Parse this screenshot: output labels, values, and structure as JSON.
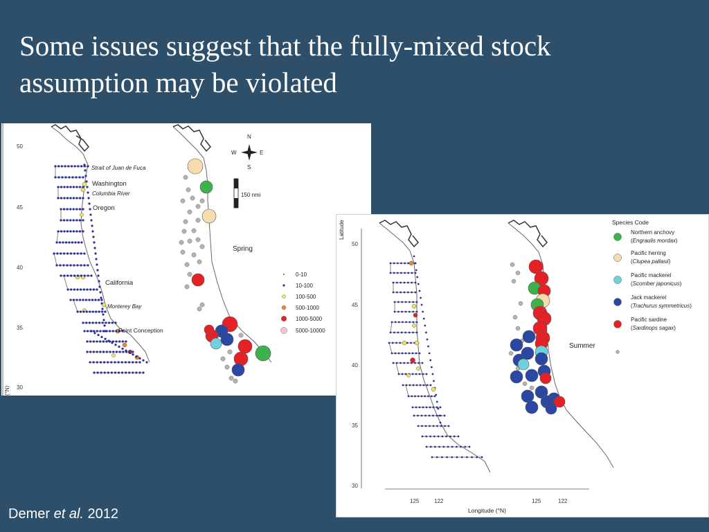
{
  "slide": {
    "title_line1": "Some issues suggest that the fully-mixed stock",
    "title_line2": "assumption may be violated",
    "citation_author": "Demer ",
    "citation_etal": "et al.",
    "citation_year": " 2012"
  },
  "map1": {
    "lat_ticks": [
      "50",
      "45",
      "40",
      "35",
      "30"
    ],
    "axis_label_fragment": "(°N)",
    "places": {
      "strait": "Strait of Juan de Fuca",
      "washington": "Washington",
      "columbia": "Columbia River",
      "oregon": "Oregon",
      "california": "California",
      "monterey": "Monterey Bay",
      "point_conception": "Point Conception"
    },
    "compass": {
      "n": "N",
      "s": "S",
      "e": "E",
      "w": "W"
    },
    "scale_label": "150 nmi",
    "season": "Spring",
    "legend": [
      {
        "label": "0-10",
        "color": "#1b1f6e"
      },
      {
        "label": "10-100",
        "color": "#2a2f9a"
      },
      {
        "label": "100-500",
        "color": "#f2e35c"
      },
      {
        "label": "500-1000",
        "color": "#e98a2c"
      },
      {
        "label": "1000-5000",
        "color": "#e02228"
      },
      {
        "label": "5000-10000",
        "color": "#f6c5cf"
      }
    ]
  },
  "map2": {
    "lat_ticks": [
      "50",
      "45",
      "40",
      "35",
      "30"
    ],
    "lon_ticks": [
      "125",
      "122",
      "125",
      "122"
    ],
    "y_axis_label": "Latitude",
    "x_axis_label": "Longitude (°N)",
    "season": "Summer",
    "species_title": "Species Code",
    "species": [
      {
        "common": "Northern anchovy",
        "sci_prefix": "(",
        "sci": "Engraulis mordax",
        "sci_suffix": ")",
        "color": "#3db24a"
      },
      {
        "common": "Pacific herring",
        "sci_prefix": "(",
        "sci": "Clupea pallasii",
        "sci_suffix": ")",
        "color": "#f7dcb0"
      },
      {
        "common": "Pacific mackerel",
        "sci_prefix": "(",
        "sci": "Scomber japonicus",
        "sci_suffix": ")",
        "color": "#6fd0de"
      },
      {
        "common": "Jack mackerel",
        "sci_prefix": "(",
        "sci": "Trachurus symmetricus",
        "sci_suffix": ")",
        "color": "#2b47a4"
      },
      {
        "common": "Pacific sardine",
        "sci_prefix": "(",
        "sci": "Sardinops sagax",
        "sci_suffix": ")",
        "color": "#e52125"
      }
    ],
    "other_color": "#b3b3b3"
  }
}
